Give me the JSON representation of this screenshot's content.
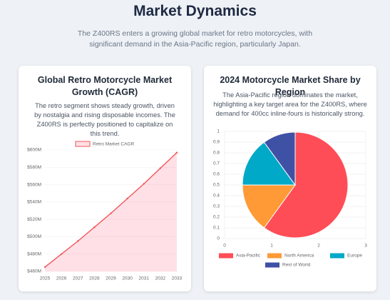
{
  "header": {
    "title": "Market Dynamics",
    "subtitle": "The Z400RS enters a growing global market for retro motorcycles, with significant demand in the Asia-Pacific region, particularly Japan."
  },
  "chart_data": [
    {
      "type": "line",
      "title": "Global Retro Motorcycle Market Growth (CAGR)",
      "description": "The retro segment shows steady growth, driven by nostalgia and rising disposable incomes. The Z400RS is perfectly positioned to capitalize on this trend.",
      "categories": [
        "2025",
        "2026",
        "2027",
        "2028",
        "2029",
        "2030",
        "2031",
        "2032",
        "2033"
      ],
      "series": [
        {
          "name": "Retro Market CAGR",
          "color": "#f0565a",
          "values": [
            465,
            480,
            495,
            511,
            527,
            544,
            561,
            579,
            597
          ]
        }
      ],
      "ylim": [
        460,
        600
      ],
      "yticks": [
        {
          "value": 460,
          "label": "$460M"
        },
        {
          "value": 480,
          "label": "$480M"
        },
        {
          "value": 500,
          "label": "$500M"
        },
        {
          "value": 520,
          "label": "$520M"
        },
        {
          "value": 540,
          "label": "$540M"
        },
        {
          "value": 560,
          "label": "$560M"
        },
        {
          "value": 580,
          "label": "$580M"
        },
        {
          "value": 600,
          "label": "$600M"
        }
      ],
      "grid": true
    },
    {
      "type": "pie",
      "title": "2024 Motorcycle Market Share by Region",
      "description": "The Asia-Pacific region dominates the market, highlighting a key target area for the Z400RS, where demand for 400cc inline-fours is historically strong.",
      "categories": [
        "Asia-Pacific",
        "North America",
        "Europe",
        "Rest of World"
      ],
      "values": [
        60,
        15,
        15,
        10
      ],
      "colors": [
        "#ff4d57",
        "#ff9a36",
        "#00a9c7",
        "#3f51a5"
      ],
      "xlim": [
        0,
        3
      ],
      "xticks": [
        0,
        1,
        2,
        3
      ],
      "ylim": [
        0,
        1
      ],
      "yticks": [
        0,
        0.1,
        0.2,
        0.3,
        0.4,
        0.5,
        0.6,
        0.7,
        0.8,
        0.9,
        1
      ],
      "grid": true
    }
  ]
}
